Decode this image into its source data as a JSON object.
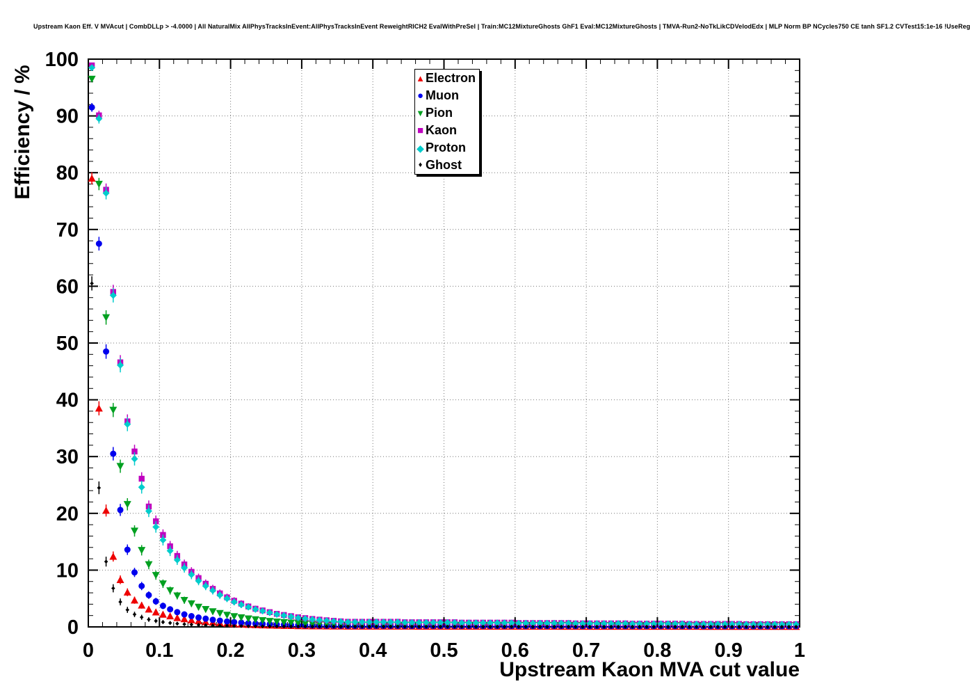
{
  "title": "Upstream Kaon Eff. V MVAcut | CombDLLp > -4.0000 | All NaturalMix AllPhysTracksInEvent:AllPhysTracksInEvent ReweightRICH2 EvalWithPreSel | Train:MC12MixtureGhosts GhF1 Eval:MC12MixtureGhosts | TMVA-Run2-NoTkLikCDVelodEdx | MLP Norm BP NCycles750 CE tanh SF1.2 CVTest15:1e-16 !UseReg",
  "axes": {
    "x": {
      "label": "Upstream Kaon MVA cut value",
      "tick_labels": [
        "0",
        "0.1",
        "0.2",
        "0.3",
        "0.4",
        "0.5",
        "0.6",
        "0.7",
        "0.8",
        "0.9",
        "1"
      ],
      "major_step": 0.1,
      "minor_step": 0.02
    },
    "y": {
      "label": "Efficiency / %",
      "tick_labels": [
        "0",
        "10",
        "20",
        "30",
        "40",
        "50",
        "60",
        "70",
        "80",
        "90",
        "100"
      ],
      "major_step": 10,
      "minor_step": 2
    }
  },
  "chart_data": {
    "type": "scatter",
    "title": "Upstream Kaon Eff. V MVAcut",
    "xlabel": "Upstream Kaon MVA cut value",
    "ylabel": "Efficiency / %",
    "xlim": [
      0,
      1
    ],
    "ylim": [
      0,
      100
    ],
    "grid": true,
    "grid_style": "dotted",
    "legend_position": "top-center",
    "x": [
      0.005,
      0.015,
      0.025,
      0.035,
      0.045,
      0.055,
      0.065,
      0.075,
      0.085,
      0.095,
      0.105,
      0.115,
      0.125,
      0.135,
      0.145,
      0.155,
      0.165,
      0.175,
      0.185,
      0.195,
      0.205,
      0.215,
      0.225,
      0.235,
      0.245,
      0.255,
      0.265,
      0.275,
      0.285,
      0.295,
      0.305,
      0.315,
      0.325,
      0.335,
      0.345,
      0.355,
      0.365,
      0.375,
      0.385,
      0.395,
      0.405,
      0.415,
      0.425,
      0.435,
      0.445,
      0.455,
      0.465,
      0.475,
      0.485,
      0.495,
      0.505,
      0.515,
      0.525,
      0.535,
      0.545,
      0.555,
      0.565,
      0.575,
      0.585,
      0.595,
      0.605,
      0.615,
      0.625,
      0.635,
      0.645,
      0.655,
      0.665,
      0.675,
      0.685,
      0.695,
      0.705,
      0.715,
      0.725,
      0.735,
      0.745,
      0.755,
      0.765,
      0.775,
      0.785,
      0.795,
      0.805,
      0.815,
      0.825,
      0.835,
      0.845,
      0.855,
      0.865,
      0.875,
      0.885,
      0.895,
      0.905,
      0.915,
      0.925,
      0.935,
      0.945,
      0.955,
      0.965,
      0.975,
      0.985,
      0.995
    ],
    "series": [
      {
        "name": "Electron",
        "marker": "triangle-up",
        "color": "#ee0000",
        "values": [
          79.0,
          38.5,
          20.5,
          12.4,
          8.3,
          6.1,
          4.7,
          3.8,
          3.1,
          2.6,
          2.2,
          1.9,
          1.6,
          1.4,
          1.2,
          1.05,
          0.9,
          0.8,
          0.7,
          0.6,
          0.52,
          0.46,
          0.4,
          0.36,
          0.32,
          0.28,
          0.25,
          0.22,
          0.2,
          0.18,
          0.16,
          0.15,
          0.14,
          0.13,
          0.12,
          0.11,
          0.1,
          0.1,
          0.1,
          0.1,
          0.1,
          0.1,
          0.1,
          0.1,
          0.1,
          0.1,
          0.09,
          0.09,
          0.09,
          0.09,
          0.09,
          0.09,
          0.09,
          0.09,
          0.09,
          0.09,
          0.08,
          0.08,
          0.08,
          0.08,
          0.08,
          0.08,
          0.08,
          0.08,
          0.08,
          0.08,
          0.07,
          0.07,
          0.07,
          0.07,
          0.07,
          0.07,
          0.07,
          0.07,
          0.07,
          0.07,
          0.06,
          0.06,
          0.06,
          0.06,
          0.06,
          0.06,
          0.06,
          0.06,
          0.06,
          0.06,
          0.05,
          0.05,
          0.05,
          0.05,
          0.05,
          0.05,
          0.05,
          0.05,
          0.05,
          0.05,
          0.05,
          0.05,
          0.05,
          0.05
        ]
      },
      {
        "name": "Muon",
        "marker": "circle",
        "color": "#0000ee",
        "values": [
          91.5,
          67.5,
          48.5,
          30.5,
          20.6,
          13.6,
          9.6,
          7.2,
          5.6,
          4.5,
          3.7,
          3.1,
          2.6,
          2.2,
          1.9,
          1.65,
          1.45,
          1.25,
          1.1,
          0.95,
          0.85,
          0.75,
          0.65,
          0.58,
          0.52,
          0.46,
          0.41,
          0.37,
          0.33,
          0.3,
          0.28,
          0.26,
          0.24,
          0.22,
          0.21,
          0.2,
          0.19,
          0.19,
          0.19,
          0.19,
          0.19,
          0.19,
          0.19,
          0.19,
          0.18,
          0.18,
          0.18,
          0.18,
          0.18,
          0.18,
          0.18,
          0.18,
          0.17,
          0.17,
          0.17,
          0.17,
          0.17,
          0.17,
          0.17,
          0.17,
          0.16,
          0.16,
          0.16,
          0.16,
          0.16,
          0.16,
          0.16,
          0.16,
          0.15,
          0.15,
          0.15,
          0.15,
          0.15,
          0.15,
          0.15,
          0.15,
          0.14,
          0.14,
          0.14,
          0.14,
          0.14,
          0.14,
          0.14,
          0.14,
          0.13,
          0.13,
          0.13,
          0.13,
          0.13,
          0.13,
          0.13,
          0.13,
          0.12,
          0.12,
          0.12,
          0.12,
          0.12,
          0.12,
          0.12,
          0.12
        ]
      },
      {
        "name": "Pion",
        "marker": "triangle-down",
        "color": "#00a020",
        "values": [
          96.5,
          78.0,
          54.5,
          38.2,
          28.3,
          21.6,
          16.9,
          13.5,
          11.0,
          9.1,
          7.6,
          6.4,
          5.5,
          4.7,
          4.1,
          3.5,
          3.1,
          2.7,
          2.4,
          2.1,
          1.85,
          1.65,
          1.45,
          1.3,
          1.15,
          1.0,
          0.9,
          0.8,
          0.72,
          0.65,
          0.58,
          0.53,
          0.48,
          0.44,
          0.4,
          0.37,
          0.35,
          0.35,
          0.35,
          0.35,
          0.35,
          0.35,
          0.35,
          0.35,
          0.33,
          0.33,
          0.33,
          0.33,
          0.33,
          0.33,
          0.33,
          0.33,
          0.31,
          0.31,
          0.31,
          0.31,
          0.31,
          0.31,
          0.31,
          0.31,
          0.3,
          0.3,
          0.3,
          0.3,
          0.3,
          0.3,
          0.3,
          0.3,
          0.28,
          0.28,
          0.28,
          0.28,
          0.28,
          0.28,
          0.28,
          0.28,
          0.27,
          0.27,
          0.27,
          0.27,
          0.27,
          0.27,
          0.27,
          0.27,
          0.26,
          0.26,
          0.26,
          0.26,
          0.26,
          0.26,
          0.26,
          0.26,
          0.25,
          0.25,
          0.25,
          0.25,
          0.25,
          0.25,
          0.25,
          0.25
        ]
      },
      {
        "name": "Kaon",
        "marker": "square",
        "color": "#bf00bf",
        "values": [
          98.9,
          90.1,
          77.0,
          59.0,
          46.6,
          36.2,
          30.9,
          26.1,
          21.2,
          18.6,
          16.2,
          14.2,
          12.5,
          11.0,
          9.7,
          8.6,
          7.6,
          6.7,
          5.9,
          5.2,
          4.6,
          4.1,
          3.6,
          3.2,
          2.9,
          2.6,
          2.3,
          2.1,
          1.9,
          1.7,
          1.55,
          1.4,
          1.28,
          1.17,
          1.07,
          0.98,
          0.9,
          0.9,
          0.9,
          0.9,
          0.9,
          0.9,
          0.9,
          0.9,
          0.82,
          0.82,
          0.82,
          0.82,
          0.82,
          0.82,
          0.82,
          0.82,
          0.75,
          0.75,
          0.75,
          0.75,
          0.75,
          0.75,
          0.75,
          0.75,
          0.68,
          0.68,
          0.68,
          0.68,
          0.68,
          0.68,
          0.68,
          0.68,
          0.62,
          0.62,
          0.62,
          0.62,
          0.62,
          0.62,
          0.62,
          0.62,
          0.57,
          0.57,
          0.57,
          0.57,
          0.57,
          0.57,
          0.57,
          0.57,
          0.52,
          0.52,
          0.52,
          0.52,
          0.52,
          0.52,
          0.52,
          0.52,
          0.48,
          0.48,
          0.48,
          0.48,
          0.48,
          0.48,
          0.48,
          0.48
        ]
      },
      {
        "name": "Proton",
        "marker": "diamond",
        "color": "#00cccc",
        "values": [
          98.5,
          89.5,
          76.4,
          58.4,
          46.1,
          35.7,
          29.6,
          24.6,
          20.4,
          17.6,
          15.3,
          13.4,
          11.8,
          10.4,
          9.2,
          8.1,
          7.2,
          6.4,
          5.6,
          5.0,
          4.4,
          3.9,
          3.5,
          3.1,
          2.8,
          2.5,
          2.2,
          2.0,
          1.8,
          1.6,
          1.45,
          1.32,
          1.2,
          1.1,
          1.0,
          0.92,
          0.85,
          0.85,
          0.85,
          0.85,
          0.85,
          0.85,
          0.85,
          0.85,
          0.77,
          0.77,
          0.77,
          0.77,
          0.77,
          0.77,
          0.77,
          0.77,
          0.7,
          0.7,
          0.7,
          0.7,
          0.7,
          0.7,
          0.7,
          0.7,
          0.64,
          0.64,
          0.64,
          0.64,
          0.64,
          0.64,
          0.64,
          0.64,
          0.58,
          0.58,
          0.58,
          0.58,
          0.58,
          0.58,
          0.58,
          0.58,
          0.53,
          0.53,
          0.53,
          0.53,
          0.53,
          0.53,
          0.53,
          0.53,
          0.48,
          0.48,
          0.48,
          0.48,
          0.48,
          0.48,
          0.48,
          0.48,
          0.44,
          0.44,
          0.44,
          0.44,
          0.44,
          0.44,
          0.44,
          0.44
        ]
      },
      {
        "name": "Ghost",
        "marker": "diamond-small",
        "color": "#000000",
        "values": [
          60.5,
          24.5,
          11.5,
          6.8,
          4.4,
          3.0,
          2.2,
          1.7,
          1.3,
          1.05,
          0.85,
          0.7,
          0.58,
          0.48,
          0.4,
          0.34,
          0.29,
          0.25,
          0.21,
          0.18,
          0.16,
          0.14,
          0.12,
          0.11,
          0.1,
          0.09,
          0.085,
          0.08,
          0.075,
          0.07,
          0.065,
          0.06,
          0.058,
          0.055,
          0.052,
          0.05,
          0.048,
          0.048,
          0.048,
          0.048,
          0.048,
          0.048,
          0.048,
          0.048,
          0.045,
          0.045,
          0.045,
          0.045,
          0.045,
          0.045,
          0.045,
          0.045,
          0.042,
          0.042,
          0.042,
          0.042,
          0.042,
          0.042,
          0.042,
          0.042,
          0.04,
          0.04,
          0.04,
          0.04,
          0.04,
          0.04,
          0.04,
          0.04,
          0.038,
          0.038,
          0.038,
          0.038,
          0.038,
          0.038,
          0.038,
          0.038,
          0.036,
          0.036,
          0.036,
          0.036,
          0.036,
          0.036,
          0.036,
          0.036,
          0.034,
          0.034,
          0.034,
          0.034,
          0.034,
          0.034,
          0.034,
          0.034,
          0.032,
          0.032,
          0.032,
          0.032,
          0.032,
          0.032,
          0.032,
          0.032
        ]
      }
    ]
  }
}
